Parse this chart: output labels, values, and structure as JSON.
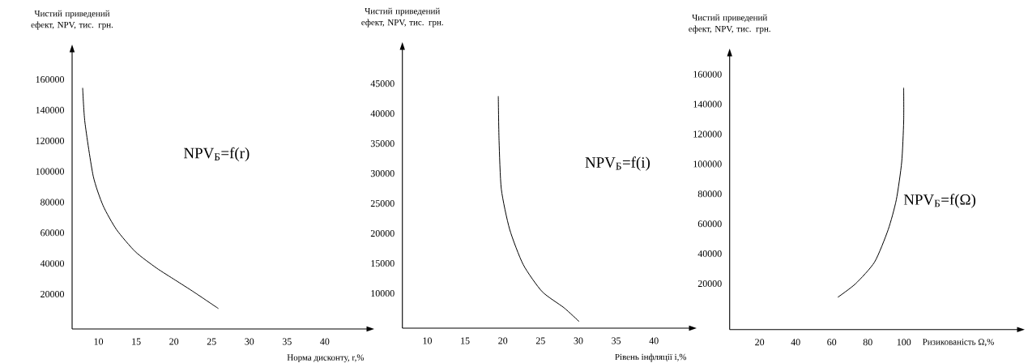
{
  "chart_data": [
    {
      "type": "line",
      "ylabel": "Чистий приведений ефект, NPV, тис. грн.",
      "xlabel": "Норма дисконту, r,%",
      "annotations": [
        "NPV$_{Б}$=f(r)"
      ],
      "x": [
        7.9,
        8.2,
        9.3,
        10.6,
        12.4,
        14.9,
        17.7,
        20.2,
        22.7,
        25.9
      ],
      "values": [
        154500,
        132000,
        97000,
        77800,
        62000,
        47600,
        37000,
        29100,
        21200,
        10600
      ],
      "xlim": [
        6.5,
        45.6
      ],
      "ylim": [
        -2700,
        178000
      ],
      "xticks": [
        10,
        15,
        20,
        25,
        30,
        35,
        40
      ],
      "yticks": [
        20000,
        40000,
        60000,
        80000,
        100000,
        120000,
        140000,
        160000
      ]
    },
    {
      "type": "line",
      "ylabel": "Чистий приведений ефект, NPV, тис. грн.",
      "xlabel": "Рівень інфляції і,%",
      "annotations": [
        "NPV$_{Б}$=f(i)"
      ],
      "x": [
        19.4,
        19.5,
        19.8,
        20.9,
        22.7,
        25.2,
        28.1,
        30.1
      ],
      "values": [
        42900,
        35500,
        27400,
        20700,
        14800,
        10300,
        7600,
        5300
      ],
      "xlim": [
        6.7,
        44.7
      ],
      "ylim": [
        4200,
        50700
      ],
      "xticks": [
        10,
        15,
        20,
        25,
        30,
        35,
        40
      ],
      "yticks": [
        10000,
        15000,
        20000,
        25000,
        30000,
        35000,
        40000,
        45000
      ]
    },
    {
      "type": "line",
      "ylabel": "Чистий приведений ефект, NPV, тис. грн.",
      "xlabel": "Ризикованість Ω,%",
      "annotations": [
        "NPV$_{Б}$=f(Ω)"
      ],
      "x": [
        63.4,
        73.3,
        83.8,
        91.3,
        95.8,
        98.8,
        99.9,
        99.9
      ],
      "values": [
        10900,
        20000,
        34500,
        56100,
        76000,
        101300,
        128400,
        151000
      ],
      "xlim": [
        3.4,
        163
      ],
      "ylim": [
        -10700,
        172300
      ],
      "xticks": [
        20,
        40,
        60,
        80,
        100
      ],
      "yticks": [
        20000,
        40000,
        60000,
        80000,
        100000,
        120000,
        140000,
        160000
      ]
    }
  ]
}
